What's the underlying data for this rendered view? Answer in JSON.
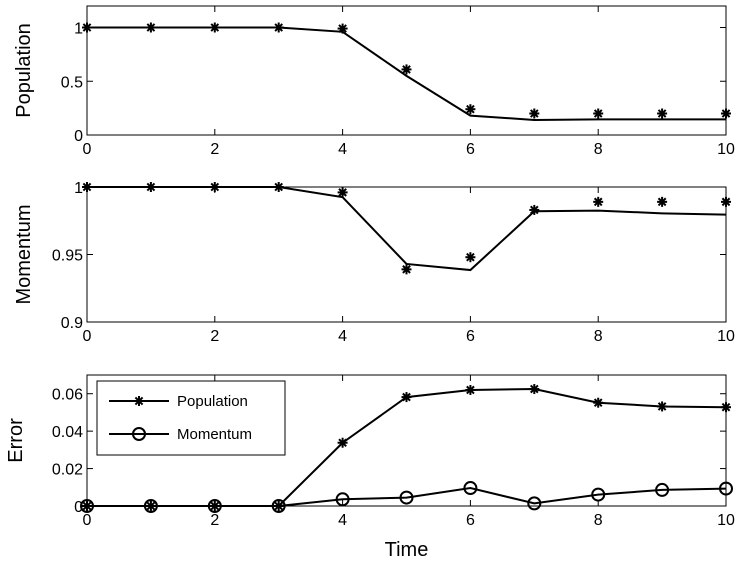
{
  "chart_data": [
    {
      "type": "line",
      "ylabel": "Population",
      "xlabel": "",
      "xlim": [
        0,
        10
      ],
      "ylim": [
        0,
        1.2
      ],
      "xticks": [
        "0",
        "2",
        "4",
        "6",
        "8",
        "10"
      ],
      "yticks": [
        "0",
        "0.5",
        "1"
      ],
      "ytick_values": [
        0,
        0.5,
        1
      ],
      "series": [
        {
          "marker": "line",
          "x": [
            0,
            1,
            2,
            3,
            4,
            5,
            6,
            7,
            8,
            9,
            10
          ],
          "values": [
            1.0,
            1.0,
            1.0,
            1.0,
            0.96,
            0.55,
            0.18,
            0.14,
            0.145,
            0.145,
            0.145
          ]
        },
        {
          "marker": "star",
          "x": [
            0,
            1,
            2,
            3,
            4,
            5,
            6,
            7,
            8,
            9,
            10
          ],
          "values": [
            1.0,
            1.0,
            1.0,
            1.0,
            0.99,
            0.61,
            0.24,
            0.2,
            0.2,
            0.2,
            0.2
          ]
        }
      ]
    },
    {
      "type": "line",
      "ylabel": "Momentum",
      "xlabel": "",
      "xlim": [
        0,
        10
      ],
      "ylim": [
        0.9,
        1.0
      ],
      "xticks": [
        "0",
        "2",
        "4",
        "6",
        "8",
        "10"
      ],
      "yticks": [
        "0.9",
        "0.95",
        "1"
      ],
      "ytick_values": [
        0.9,
        0.95,
        1.0
      ],
      "series": [
        {
          "marker": "line",
          "x": [
            0,
            1,
            2,
            3,
            4,
            5,
            6,
            7,
            8,
            9,
            10
          ],
          "values": [
            1.0,
            1.0,
            1.0,
            1.0,
            0.9925,
            0.943,
            0.9385,
            0.982,
            0.9825,
            0.9805,
            0.9795
          ]
        },
        {
          "marker": "star",
          "x": [
            0,
            1,
            2,
            3,
            4,
            5,
            6,
            7,
            8,
            9,
            10
          ],
          "values": [
            1.0,
            1.0,
            1.0,
            1.0,
            0.996,
            0.939,
            0.948,
            0.983,
            0.989,
            0.989,
            0.989
          ]
        }
      ]
    },
    {
      "type": "line",
      "ylabel": "Error",
      "xlabel": "Time",
      "xlim": [
        0,
        10
      ],
      "ylim": [
        0,
        0.07
      ],
      "xticks": [
        "0",
        "2",
        "4",
        "6",
        "8",
        "10"
      ],
      "yticks": [
        "0",
        "0.02",
        "0.04",
        "0.06"
      ],
      "ytick_values": [
        0,
        0.02,
        0.04,
        0.06
      ],
      "legend": {
        "placement": "top-left"
      },
      "series": [
        {
          "name": "Population",
          "marker": "star",
          "x": [
            0,
            1,
            2,
            3,
            4,
            5,
            6,
            7,
            8,
            9,
            10
          ],
          "values": [
            0,
            0,
            0,
            0,
            0.0338,
            0.0582,
            0.062,
            0.0625,
            0.0552,
            0.0532,
            0.0528
          ]
        },
        {
          "name": "Momentum",
          "marker": "circle",
          "x": [
            0,
            1,
            2,
            3,
            4,
            5,
            6,
            7,
            8,
            9,
            10
          ],
          "values": [
            0,
            0,
            0,
            0,
            0.0036,
            0.0045,
            0.0096,
            0.0014,
            0.0061,
            0.0086,
            0.0093
          ]
        }
      ]
    }
  ]
}
